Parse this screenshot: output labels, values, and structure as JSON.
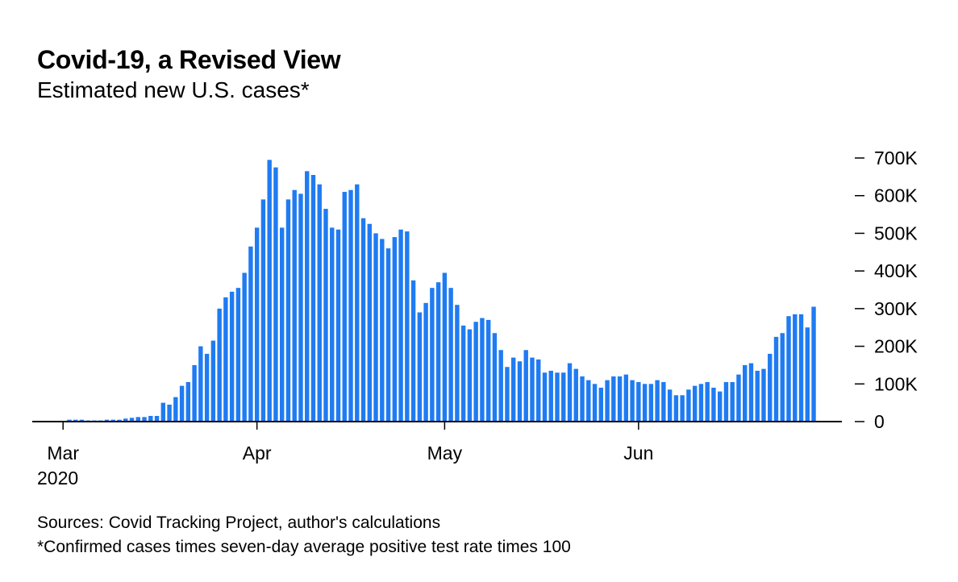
{
  "header": {
    "title": "Covid-19, a Revised View",
    "subtitle": "Estimated new U.S. cases*"
  },
  "footer": {
    "sources": "Sources: Covid Tracking Project, author's calculations",
    "note": "*Confirmed cases times seven-day average positive test rate times 100"
  },
  "colors": {
    "bar": "#1f7bf2",
    "axis": "#000000"
  },
  "chart_data": {
    "type": "bar",
    "title": "Covid-19, a Revised View",
    "subtitle": "Estimated new U.S. cases*",
    "xlabel": "",
    "ylabel": "",
    "x_start": "2020-03-01",
    "x_tick_labels": [
      {
        "label": "Mar",
        "sublabel": "2020",
        "date": "2020-03-01"
      },
      {
        "label": "Apr",
        "date": "2020-04-01"
      },
      {
        "label": "May",
        "date": "2020-05-01"
      },
      {
        "label": "Jun",
        "date": "2020-06-01"
      }
    ],
    "y_ticks": [
      0,
      100000,
      200000,
      300000,
      400000,
      500000,
      600000,
      700000
    ],
    "y_tick_labels": [
      "0",
      "100K",
      "200K",
      "300K",
      "400K",
      "500K",
      "600K",
      "700K"
    ],
    "ylim": [
      0,
      700000
    ],
    "y_axis_side": "right",
    "grid": false,
    "legend": "none",
    "series": [
      {
        "values": [
          0,
          5000,
          5000,
          5000,
          3000,
          3000,
          3000,
          5000,
          5000,
          5000,
          8000,
          10000,
          12000,
          12000,
          15000,
          15000,
          50000,
          45000,
          65000,
          95000,
          105000,
          150000,
          200000,
          180000,
          215000,
          300000,
          330000,
          345000,
          355000,
          395000,
          465000,
          515000,
          590000,
          695000,
          675000,
          515000,
          590000,
          615000,
          605000,
          665000,
          655000,
          630000,
          565000,
          515000,
          510000,
          610000,
          615000,
          630000,
          540000,
          525000,
          500000,
          485000,
          460000,
          490000,
          510000,
          505000,
          375000,
          290000,
          315000,
          355000,
          370000,
          395000,
          355000,
          310000,
          255000,
          245000,
          265000,
          275000,
          270000,
          235000,
          190000,
          145000,
          170000,
          160000,
          190000,
          170000,
          165000,
          130000,
          135000,
          130000,
          130000,
          155000,
          140000,
          120000,
          110000,
          100000,
          90000,
          110000,
          120000,
          120000,
          125000,
          110000,
          105000,
          100000,
          100000,
          110000,
          105000,
          85000,
          70000,
          70000,
          85000,
          95000,
          100000,
          105000,
          90000,
          80000,
          105000,
          105000,
          125000,
          150000,
          155000,
          135000,
          140000,
          180000,
          225000,
          235000,
          280000,
          285000,
          285000,
          250000,
          305000
        ]
      }
    ]
  }
}
